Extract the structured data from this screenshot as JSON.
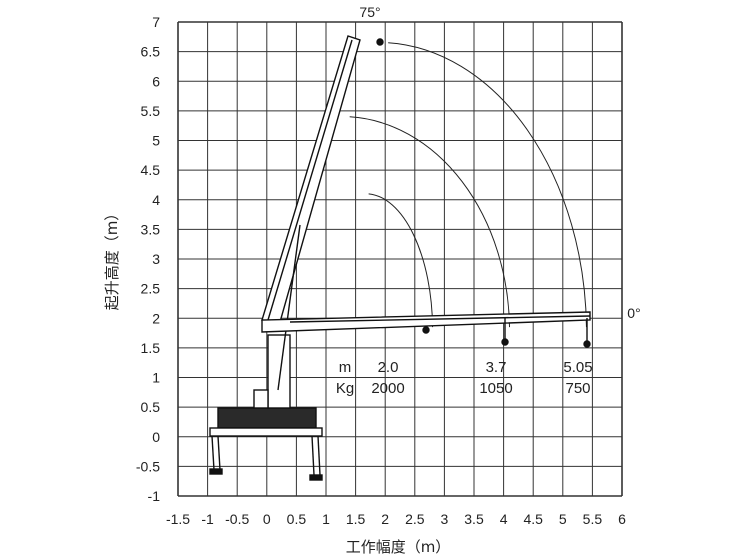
{
  "chart_data": {
    "type": "line",
    "title": "",
    "xlabel": "工作幅度（m）",
    "ylabel": "起升高度（m）",
    "xlim": [
      -1.5,
      6
    ],
    "ylim": [
      -1,
      7
    ],
    "x_ticks": [
      "-1.5",
      "-1",
      "-0.5",
      "0",
      "0.5",
      "1",
      "1.5",
      "2",
      "2.5",
      "3",
      "3.5",
      "4",
      "4.5",
      "5",
      "5.5",
      "6"
    ],
    "y_ticks": [
      "7",
      "6.5",
      "6",
      "5.5",
      "5",
      "4.5",
      "4",
      "3.5",
      "3",
      "2.5",
      "2",
      "1.5",
      "1",
      "0.5",
      "0",
      "-0.5",
      "-1"
    ],
    "grid": true,
    "angle_labels": {
      "max": "75°",
      "min": "0°"
    },
    "load_table": {
      "row_labels": [
        "m",
        "Kg"
      ],
      "radius": [
        "2.0",
        "3.7",
        "5.05"
      ],
      "load": [
        "2000",
        "1050",
        "750"
      ]
    },
    "arcs": [
      {
        "radius_m": 2.0,
        "boom_tip_at_75deg": [
          1.72,
          4.1
        ],
        "boom_tip_at_0deg": [
          2.8,
          1.85
        ]
      },
      {
        "radius_m": 3.7,
        "boom_tip_at_75deg": [
          1.4,
          5.4
        ],
        "boom_tip_at_0deg": [
          4.1,
          1.85
        ]
      },
      {
        "radius_m": 5.05,
        "boom_tip_at_75deg": [
          2.05,
          6.65
        ],
        "boom_tip_at_0deg": [
          5.4,
          1.85
        ]
      }
    ]
  }
}
